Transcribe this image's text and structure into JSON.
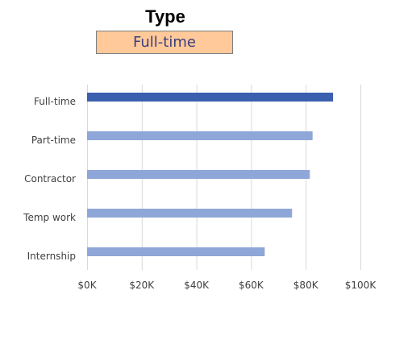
{
  "header": {
    "title": "Type",
    "selected": "Full-time"
  },
  "colors": {
    "highlight": "#3A5FAF",
    "bar": "#8FA6D8",
    "grid": "#D9D9D9",
    "selector_bg": "#FFC999",
    "selector_text": "#3B3F7F",
    "label": "#404040"
  },
  "chart_data": {
    "type": "bar",
    "orientation": "horizontal",
    "categories": [
      "Full-time",
      "Part-time",
      "Contractor",
      "Temp work",
      "Internship"
    ],
    "values": [
      90000,
      82500,
      81500,
      75000,
      65000
    ],
    "highlighted": "Full-time",
    "xlim": [
      0,
      100000
    ],
    "xticks": [
      0,
      20000,
      40000,
      60000,
      80000,
      100000
    ],
    "xtick_labels": [
      "$0K",
      "$20K",
      "$40K",
      "$60K",
      "$80K",
      "$100K"
    ],
    "grid": true
  }
}
